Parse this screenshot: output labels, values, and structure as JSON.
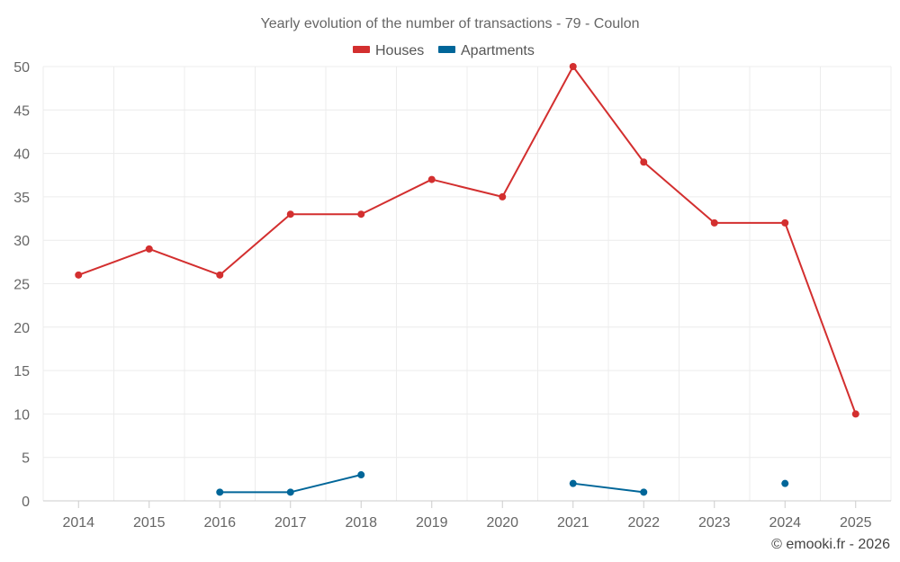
{
  "chart_data": {
    "type": "line",
    "title": "Yearly evolution of the number of transactions - 79 - Coulon",
    "categories": [
      "2014",
      "2015",
      "2016",
      "2017",
      "2018",
      "2019",
      "2020",
      "2021",
      "2022",
      "2023",
      "2024",
      "2025"
    ],
    "ylim": [
      0,
      50
    ],
    "yticks": [
      0,
      5,
      10,
      15,
      20,
      25,
      30,
      35,
      40,
      45,
      50
    ],
    "grid": true,
    "legend_position": "top-center",
    "series": [
      {
        "name": "Houses",
        "color": "#d32f2f",
        "values": [
          26,
          29,
          26,
          33,
          33,
          37,
          35,
          50,
          39,
          32,
          32,
          10
        ]
      },
      {
        "name": "Apartments",
        "color": "#006699",
        "values": [
          null,
          null,
          1,
          1,
          3,
          null,
          null,
          2,
          1,
          null,
          2,
          null
        ]
      }
    ]
  },
  "credit": "© emooki.fr - 2026"
}
